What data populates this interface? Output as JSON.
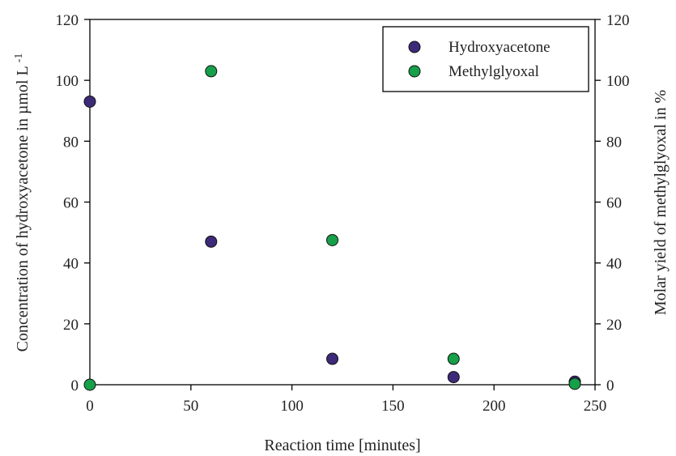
{
  "chart_data": {
    "type": "scatter",
    "xlabel": "Reaction time [minutes]",
    "ylabel_left_main": "Concentration of hydroxyacetone in µmol L",
    "ylabel_left_sup": "-1",
    "ylabel_right": "Molar yield of methylglyoxal in %",
    "xlim": [
      0,
      250
    ],
    "ylim_left": [
      0,
      120
    ],
    "ylim_right": [
      0,
      120
    ],
    "xticks": [
      "0",
      "50",
      "100",
      "150",
      "200",
      "250"
    ],
    "yticks_left": [
      "0",
      "20",
      "40",
      "60",
      "80",
      "100",
      "120"
    ],
    "yticks_right": [
      "0",
      "20",
      "40",
      "60",
      "80",
      "100",
      "120"
    ],
    "grid": false,
    "legend_position": "top-right",
    "series": [
      {
        "name": "Hydroxyacetone",
        "axis": "left",
        "color": "#3d2a78",
        "points": [
          [
            0,
            93
          ],
          [
            60,
            47
          ],
          [
            120,
            8.5
          ],
          [
            180,
            2.5
          ],
          [
            240,
            1
          ]
        ]
      },
      {
        "name": "Methylglyoxal",
        "axis": "right",
        "color": "#16a049",
        "points": [
          [
            0,
            0
          ],
          [
            60,
            103
          ],
          [
            120,
            47.5
          ],
          [
            180,
            8.5
          ],
          [
            240,
            0.3
          ]
        ]
      }
    ]
  }
}
